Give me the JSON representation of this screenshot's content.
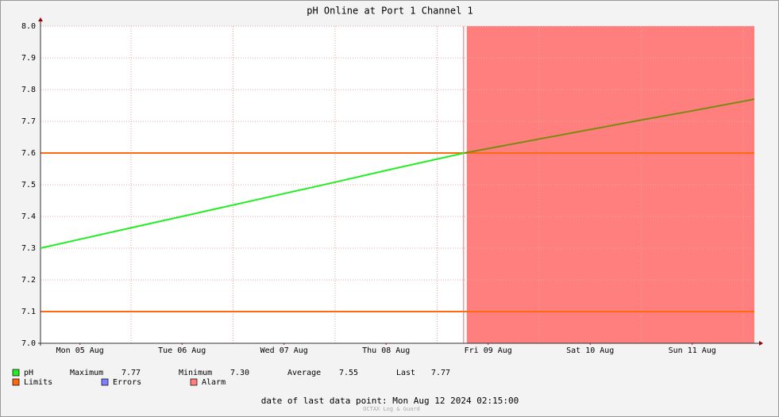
{
  "chart_data": {
    "type": "line",
    "title": "pH Online at Port 1 Channel 1",
    "xlim": [
      0.113,
      7.109
    ],
    "xticks": [
      {
        "value": 0.5,
        "label": "Mon 05 Aug"
      },
      {
        "value": 1.5,
        "label": "Tue 06 Aug"
      },
      {
        "value": 2.5,
        "label": "Wed 07 Aug"
      },
      {
        "value": 3.5,
        "label": "Thu 08 Aug"
      },
      {
        "value": 4.5,
        "label": "Fri 09 Aug"
      },
      {
        "value": 5.5,
        "label": "Sat 10 Aug"
      },
      {
        "value": 6.5,
        "label": "Sun 11 Aug"
      }
    ],
    "xgrid": [
      1,
      2,
      3,
      4,
      5,
      6,
      7
    ],
    "ylim": [
      7.0,
      8.0
    ],
    "yticks": [
      {
        "value": 7.0,
        "label": "7.0"
      },
      7.1,
      7.2,
      7.3,
      7.4,
      7.5,
      7.6,
      7.7,
      7.8,
      7.9,
      {
        "value": 8.0,
        "label": "8.0"
      }
    ],
    "grid": true,
    "series": [
      {
        "name": "pH",
        "color": "#22ee22",
        "alarm_color": "#7a8a10",
        "x": [
          0.113,
          0.5,
          1,
          1.5,
          2,
          2.5,
          3,
          3.5,
          4,
          4.268,
          4.5,
          5,
          5.5,
          6,
          6.5,
          7,
          7.109
        ],
        "values": [
          7.3,
          7.328,
          7.364,
          7.4,
          7.436,
          7.472,
          7.508,
          7.545,
          7.581,
          7.6,
          7.614,
          7.644,
          7.674,
          7.704,
          7.733,
          7.763,
          7.77
        ]
      }
    ],
    "stats": [
      {
        "label": "Maximum",
        "value": "7.77"
      },
      {
        "label": "Minimum",
        "value": "7.30"
      },
      {
        "label": "Average",
        "value": "7.55"
      },
      {
        "label": "Last",
        "value": "7.77"
      }
    ],
    "limits": {
      "name": "Limits",
      "color": "#ff6a10",
      "values": [
        7.6,
        7.1
      ]
    },
    "errors": {
      "name": "Errors",
      "color": "#7f7fff"
    },
    "alarm": {
      "name": "Alarm",
      "color": "#ff7f7f",
      "start": 4.29
    },
    "footer": "date of last data point:  Mon Aug 12 2024 02:15:00",
    "watermark": "OCTAX Log & Guard"
  }
}
